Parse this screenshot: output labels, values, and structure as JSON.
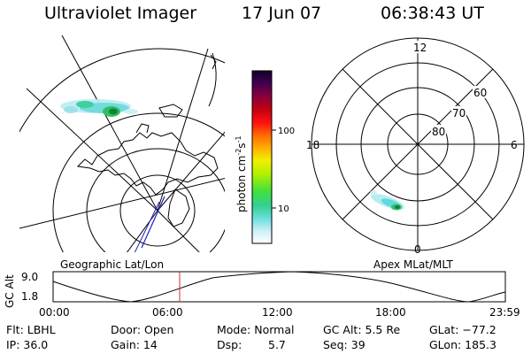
{
  "header": {
    "title": "Ultraviolet Imager",
    "date": "17 Jun 07",
    "time": "06:38:43 UT"
  },
  "colorbar": {
    "unit_label": "photon cm",
    "unit_exp1": "-2",
    "unit_s": "s",
    "unit_exp2": "-1",
    "tick_100": "100",
    "tick_10": "10"
  },
  "left_panel": {
    "label": "Geographic Lat/Lon"
  },
  "right_panel": {
    "label": "Apex MLat/MLT",
    "mlt_12": "12",
    "mlt_18": "18",
    "mlt_6": "6",
    "mlt_0": "0",
    "mlat_60": "60",
    "mlat_70": "70",
    "mlat_80": "80"
  },
  "orbit_plot": {
    "ylabel": "GC Alt",
    "y_top": "9.0",
    "y_bottom": "1.8",
    "x_ticks": [
      "00:00",
      "06:00",
      "12:00",
      "18:00",
      "23:59"
    ]
  },
  "status": {
    "flt": "Flt: LBHL",
    "door": "Door: Open",
    "mode": "Mode: Normal",
    "gc_alt": "GC Alt: 5.5 Re",
    "glat": "GLat: −77.2",
    "ip": "IP: 36.0",
    "gain": "Gain: 14",
    "dsp_label": "Dsp:",
    "dsp_value": "5.7",
    "seq": "Seq: 39",
    "glon": "GLon: 185.3"
  },
  "colors": {
    "marker": "#c03030",
    "track": "#2020c0"
  }
}
